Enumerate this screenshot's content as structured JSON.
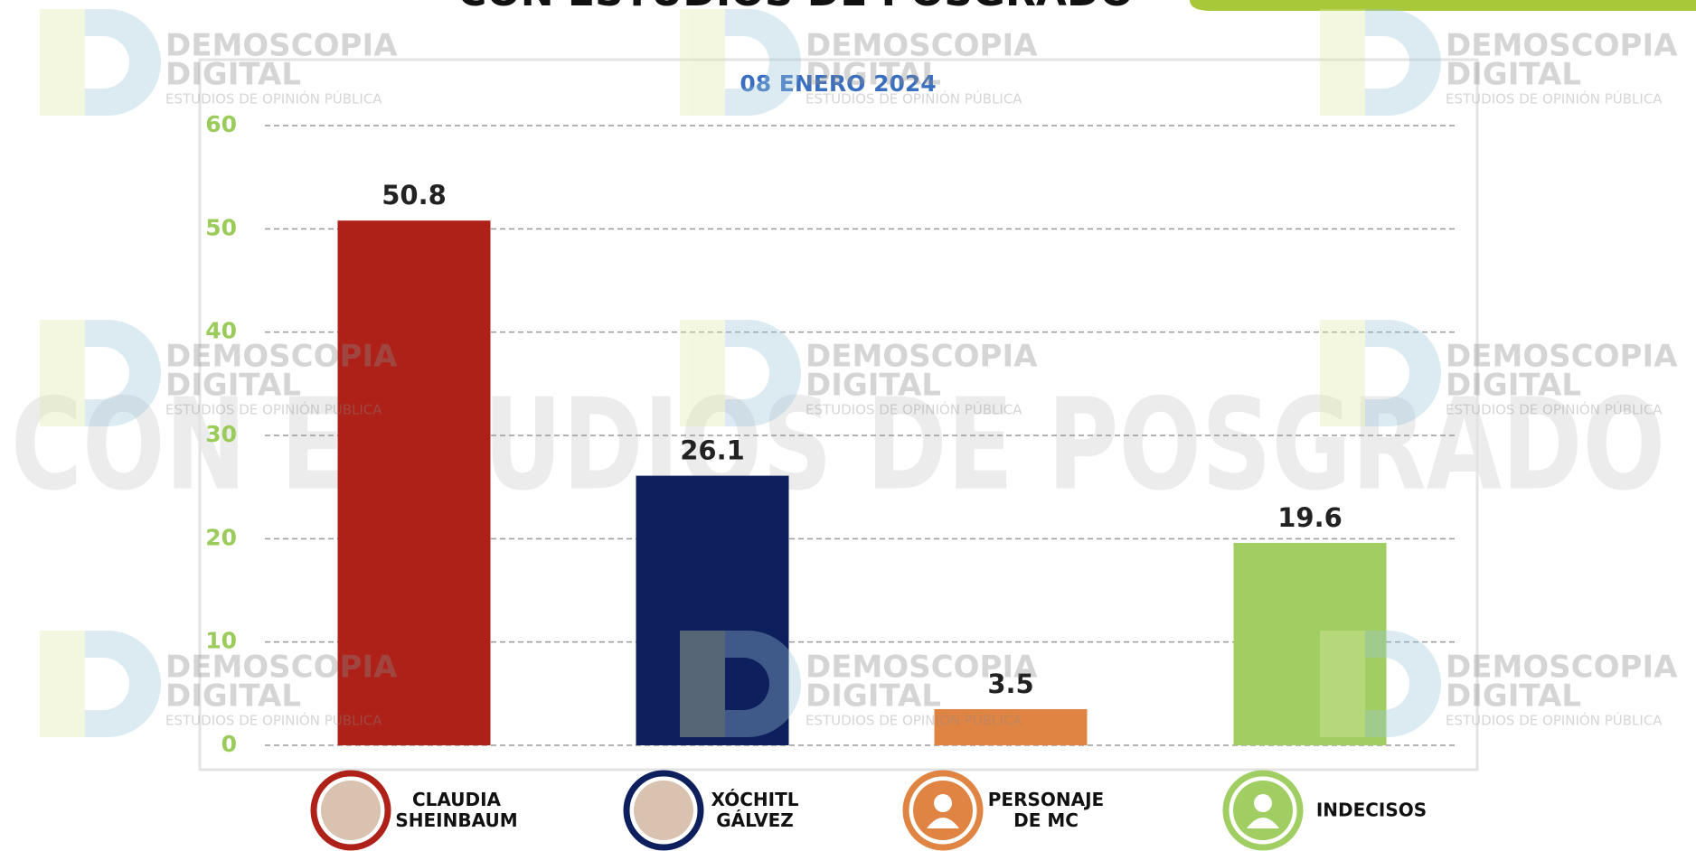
{
  "chart_data": {
    "type": "bar",
    "title": "CON ESTUDIOS DE POSGRADO",
    "subtitle": "08 ENERO 2024",
    "categories": [
      "CLAUDIA SHEINBAUM",
      "XÓCHITL GÁLVEZ",
      "PERSONAJE DE MC",
      "INDECISOS"
    ],
    "values": [
      50.8,
      26.1,
      3.5,
      19.6
    ],
    "colors": [
      "#ae2119",
      "#0d1f5c",
      "#e08443",
      "#a1ce63"
    ],
    "ylim": [
      0,
      60
    ],
    "yticks": [
      0,
      10,
      20,
      30,
      40,
      50,
      60
    ],
    "grid": true
  },
  "watermark": {
    "brand_line1": "DEMOSCOPIA",
    "brand_line2": "DIGITAL",
    "tagline": "ESTUDIOS DE OPINIÓN PÚBLICA"
  }
}
